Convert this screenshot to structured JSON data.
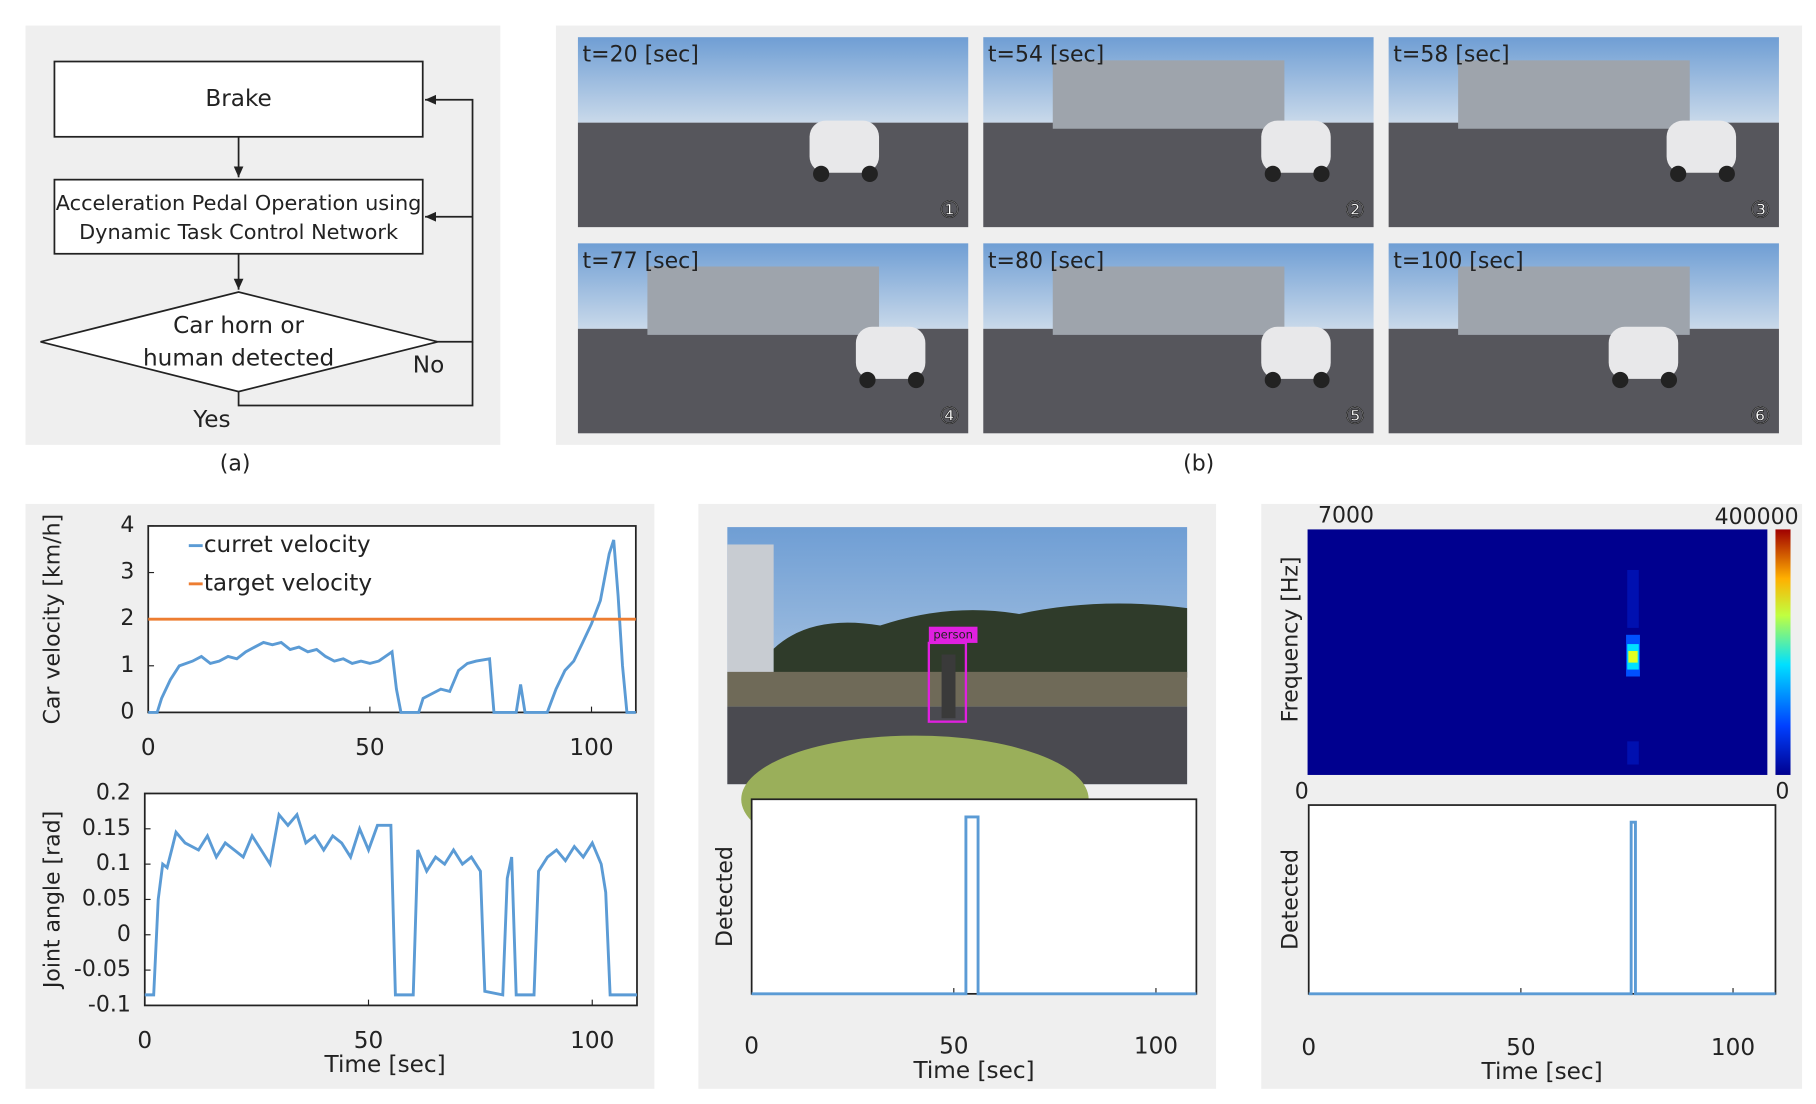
{
  "flowchart": {
    "nodes": [
      {
        "lines": [
          "Brake"
        ]
      },
      {
        "lines": [
          "Acceleration Pedal Operation using",
          "Dynamic Task Control Network"
        ]
      },
      {
        "lines": [
          "Car horn or",
          "human detected"
        ]
      }
    ],
    "yes": "Yes",
    "no": "No"
  },
  "photos": [
    {
      "time": "t=20 [sec]",
      "number": "①"
    },
    {
      "time": "t=54 [sec]",
      "number": "②"
    },
    {
      "time": "t=58 [sec]",
      "number": "③"
    },
    {
      "time": "t=77 [sec]",
      "number": "④"
    },
    {
      "time": "t=80 [sec]",
      "number": "⑤"
    },
    {
      "time": "t=100 [sec]",
      "number": "⑥"
    }
  ],
  "captions": [
    "(a)",
    "(b)"
  ],
  "camera": {
    "label": "person"
  },
  "spectrogram": {
    "ylabel": "Frequency [Hz]",
    "ylim": [
      0,
      7000
    ],
    "clim": [
      0,
      400000
    ]
  },
  "chart_data": [
    {
      "type": "line",
      "ylabel": "Car velocity [km/h]",
      "xlim": [
        0,
        110
      ],
      "xticks": [
        0,
        50,
        100
      ],
      "ylim": [
        0,
        4
      ],
      "yticks": [
        0,
        1,
        2,
        3,
        4
      ],
      "legend": "upper left",
      "series": [
        {
          "name": "curret velocity",
          "color": "#5b9bd5",
          "x": [
            0,
            2,
            3,
            5,
            7,
            10,
            12,
            14,
            16,
            18,
            20,
            22,
            24,
            26,
            28,
            30,
            32,
            34,
            36,
            38,
            40,
            42,
            44,
            46,
            48,
            50,
            52,
            55,
            56,
            57,
            61,
            62,
            64,
            66,
            68,
            70,
            72,
            74,
            77,
            78,
            83,
            84,
            85,
            90,
            92,
            94,
            96,
            98,
            100,
            102,
            104,
            105,
            106,
            107,
            108,
            110
          ],
          "values": [
            0,
            0,
            0.3,
            0.7,
            1.0,
            1.1,
            1.2,
            1.05,
            1.1,
            1.2,
            1.15,
            1.3,
            1.4,
            1.5,
            1.45,
            1.5,
            1.35,
            1.4,
            1.3,
            1.35,
            1.2,
            1.1,
            1.15,
            1.05,
            1.1,
            1.05,
            1.1,
            1.3,
            0.5,
            0,
            0,
            0.3,
            0.4,
            0.5,
            0.45,
            0.9,
            1.05,
            1.1,
            1.15,
            0,
            0,
            0.6,
            0,
            0,
            0.5,
            0.9,
            1.1,
            1.5,
            1.9,
            2.4,
            3.4,
            3.7,
            2.5,
            1.0,
            0,
            0
          ]
        },
        {
          "name": "target velocity",
          "color": "#ed7d31",
          "x": [
            0,
            110
          ],
          "values": [
            2,
            2
          ]
        }
      ]
    },
    {
      "type": "line",
      "ylabel": "Joint angle [rad]",
      "xlabel": "Time [sec]",
      "xlim": [
        0,
        110
      ],
      "xticks": [
        0,
        50,
        100
      ],
      "ylim": [
        -0.1,
        0.2
      ],
      "yticks": [
        -0.1,
        -0.05,
        0,
        0.05,
        0.1,
        0.15,
        0.2
      ],
      "series": [
        {
          "color": "#5b9bd5",
          "x": [
            0,
            2,
            3,
            4,
            5,
            6,
            7,
            9,
            12,
            14,
            16,
            18,
            20,
            22,
            24,
            26,
            28,
            30,
            32,
            34,
            36,
            38,
            40,
            42,
            44,
            46,
            48,
            50,
            52,
            55,
            56,
            60,
            61,
            63,
            65,
            67,
            69,
            71,
            73,
            75,
            76,
            80,
            81,
            82,
            83,
            87,
            88,
            90,
            92,
            94,
            96,
            98,
            100,
            102,
            103,
            104,
            110
          ],
          "values": [
            -0.085,
            -0.085,
            0.05,
            0.1,
            0.095,
            0.12,
            0.145,
            0.13,
            0.12,
            0.14,
            0.11,
            0.13,
            0.12,
            0.11,
            0.14,
            0.12,
            0.1,
            0.17,
            0.155,
            0.17,
            0.13,
            0.14,
            0.12,
            0.14,
            0.13,
            0.11,
            0.15,
            0.12,
            0.155,
            0.155,
            -0.085,
            -0.085,
            0.12,
            0.09,
            0.11,
            0.1,
            0.12,
            0.1,
            0.11,
            0.09,
            -0.08,
            -0.085,
            0.08,
            0.11,
            -0.085,
            -0.085,
            0.09,
            0.11,
            0.12,
            0.105,
            0.125,
            0.11,
            0.13,
            0.1,
            0.06,
            -0.085,
            -0.085
          ]
        }
      ]
    },
    {
      "type": "line",
      "ylabel": "Detected",
      "xlabel": "Time [sec]",
      "xlim": [
        0,
        110
      ],
      "xticks": [
        0,
        50,
        100
      ],
      "ylim": [
        0,
        1.1
      ],
      "series": [
        {
          "color": "#5b9bd5",
          "x": [
            0,
            53,
            53,
            56,
            56,
            110
          ],
          "values": [
            0,
            0,
            1,
            1,
            0,
            0
          ]
        }
      ]
    },
    {
      "type": "line",
      "ylabel": "Detected",
      "xlabel": "Time [sec]",
      "xlim": [
        0,
        110
      ],
      "xticks": [
        0,
        50,
        100
      ],
      "ylim": [
        0,
        1.1
      ],
      "series": [
        {
          "color": "#5b9bd5",
          "x": [
            0,
            76,
            76,
            77,
            77,
            110
          ],
          "values": [
            0,
            0,
            1,
            1,
            0,
            0
          ]
        }
      ]
    }
  ]
}
